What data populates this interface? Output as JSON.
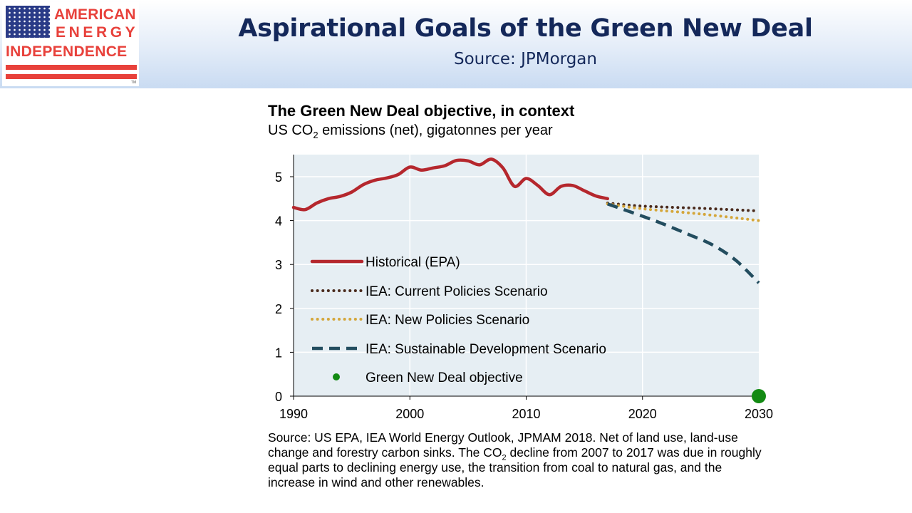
{
  "header": {
    "logo": {
      "line1": "AMERICAN",
      "line2": "ENERGY",
      "line3": "INDEPENDENCE",
      "trademark": "TM"
    },
    "title": "Aspirational Goals of the Green New Deal",
    "source": "Source: JPMorgan"
  },
  "chart_data": {
    "type": "line",
    "title": "The Green New Deal objective, in context",
    "subtitle_pre": "US CO",
    "subtitle_sub": "2",
    "subtitle_post": " emissions (net), gigatonnes per year",
    "xlabel": "",
    "ylabel": "",
    "xlim": [
      1990,
      2030
    ],
    "ylim": [
      0,
      5.5
    ],
    "xticks": [
      1990,
      2000,
      2010,
      2020,
      2030
    ],
    "yticks": [
      0,
      1,
      2,
      3,
      4,
      5
    ],
    "grid": true,
    "legend_position": "center-left",
    "series": [
      {
        "name": "Historical (EPA)",
        "style": "solid",
        "color": "#b5272d",
        "x": [
          1990,
          1991,
          1992,
          1993,
          1994,
          1995,
          1996,
          1997,
          1998,
          1999,
          2000,
          2001,
          2002,
          2003,
          2004,
          2005,
          2006,
          2007,
          2008,
          2009,
          2010,
          2011,
          2012,
          2013,
          2014,
          2015,
          2016,
          2017
        ],
        "values": [
          4.3,
          4.25,
          4.4,
          4.5,
          4.55,
          4.65,
          4.82,
          4.92,
          4.97,
          5.05,
          5.22,
          5.15,
          5.2,
          5.25,
          5.37,
          5.36,
          5.27,
          5.4,
          5.2,
          4.78,
          4.96,
          4.8,
          4.59,
          4.78,
          4.8,
          4.68,
          4.56,
          4.5
        ]
      },
      {
        "name": "IEA: Current Policies Scenario",
        "style": "dotted",
        "color": "#4a2a1c",
        "x": [
          2017,
          2020,
          2025,
          2030
        ],
        "values": [
          4.4,
          4.33,
          4.28,
          4.22
        ]
      },
      {
        "name": "IEA: New Policies Scenario",
        "style": "dotted",
        "color": "#d4a63a",
        "x": [
          2017,
          2020,
          2025,
          2030
        ],
        "values": [
          4.38,
          4.27,
          4.15,
          4.0
        ]
      },
      {
        "name": "IEA: Sustainable Development Scenario",
        "style": "dashed",
        "color": "#234d5f",
        "x": [
          2017,
          2020,
          2022,
          2024,
          2026,
          2028,
          2030
        ],
        "values": [
          4.38,
          4.1,
          3.9,
          3.68,
          3.45,
          3.1,
          2.58
        ]
      },
      {
        "name": "Green New Deal objective",
        "style": "point",
        "color": "#138a13",
        "x": [
          2030
        ],
        "values": [
          0
        ]
      }
    ]
  },
  "footnote": {
    "part1": "Source: US EPA, IEA World Energy Outlook, JPMAM 2018.  Net of land use, land-use change and forestry carbon sinks.  The CO",
    "sub": "2",
    "part2": " decline from 2007 to 2017 was due in roughly equal parts to declining energy use, the transition from coal to natural gas, and the increase in wind and other renewables."
  }
}
